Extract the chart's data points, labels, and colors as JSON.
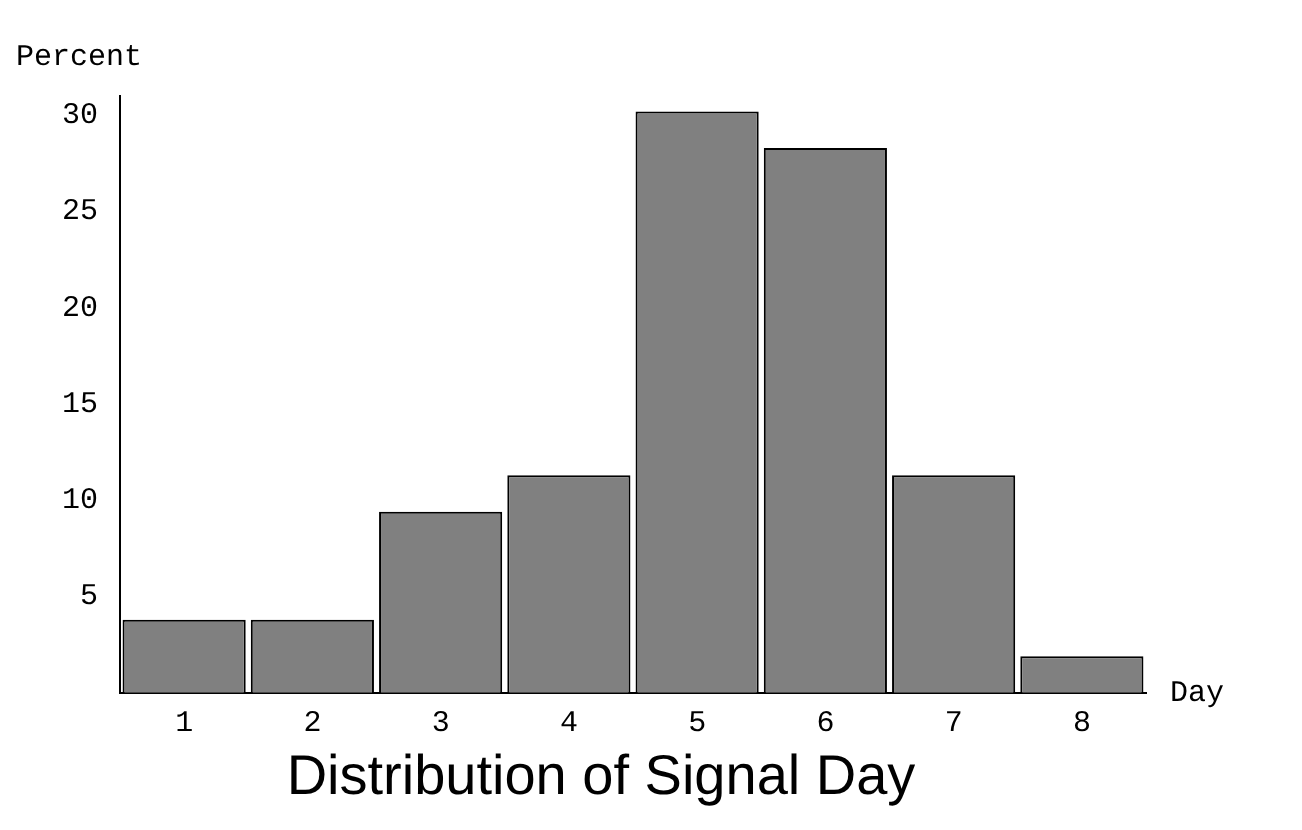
{
  "chart_data": {
    "type": "bar",
    "title": "Distribution of Signal Day",
    "xlabel": "Day",
    "ylabel": "Percent",
    "categories": [
      "1",
      "2",
      "3",
      "4",
      "5",
      "6",
      "7",
      "8"
    ],
    "values": [
      3.8,
      3.8,
      9.4,
      11.3,
      30.2,
      28.3,
      11.3,
      1.9
    ],
    "color": "#808080",
    "ylim": [
      0,
      31
    ],
    "yticks": [
      5,
      10,
      15,
      20,
      25,
      30
    ],
    "grid": false,
    "legend": false
  }
}
